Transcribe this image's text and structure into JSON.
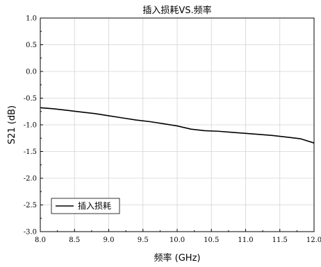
{
  "chart_data": {
    "type": "line",
    "title": "插入损耗VS.频率",
    "xlabel": "频率 (GHz)",
    "ylabel": "S21 (dB)",
    "xlim": [
      8.0,
      12.0
    ],
    "ylim": [
      -3.0,
      1.0
    ],
    "xticks": [
      "8.0",
      "8.5",
      "9.0",
      "9.5",
      "10.0",
      "10.5",
      "11.0",
      "11.5",
      "12.0"
    ],
    "yticks": [
      "1.0",
      "0.5",
      "0.0",
      "-0.5",
      "-1.0",
      "-1.5",
      "-2.0",
      "-2.5",
      "-3.0"
    ],
    "grid": true,
    "legend_position": "bottom-left",
    "series": [
      {
        "name": "插入损耗",
        "color": "#000000",
        "x": [
          8.0,
          8.2,
          8.4,
          8.6,
          8.8,
          9.0,
          9.2,
          9.4,
          9.6,
          9.8,
          10.0,
          10.2,
          10.4,
          10.6,
          10.8,
          11.0,
          11.2,
          11.4,
          11.6,
          11.8,
          12.0
        ],
        "y": [
          -0.68,
          -0.7,
          -0.73,
          -0.76,
          -0.79,
          -0.83,
          -0.87,
          -0.91,
          -0.94,
          -0.98,
          -1.02,
          -1.08,
          -1.11,
          -1.12,
          -1.14,
          -1.16,
          -1.18,
          -1.2,
          -1.23,
          -1.26,
          -1.34
        ]
      }
    ]
  }
}
